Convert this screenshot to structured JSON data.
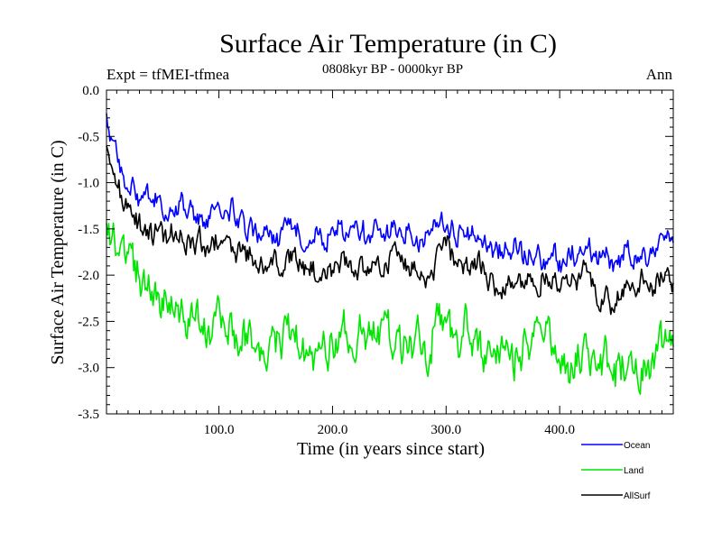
{
  "chart_data": {
    "type": "line",
    "title": "Surface Air Temperature (in C)",
    "subtitle": "0808kyr BP - 0000kyr BP",
    "expt_label": "Expt = tfMEI-tfmea",
    "season_label": "Ann",
    "xlabel": "Time (in years since start)",
    "ylabel": "Surface Air Temperature (in C)",
    "xlim": [
      1,
      500
    ],
    "ylim": [
      -3.5,
      0.0
    ],
    "x_ticks": [
      100,
      200,
      300,
      400
    ],
    "x_tick_labels": [
      "100.0",
      "200.0",
      "300.0",
      "400.0"
    ],
    "y_ticks": [
      0.0,
      -0.5,
      -1.0,
      -1.5,
      -2.0,
      -2.5,
      -3.0,
      -3.5
    ],
    "y_tick_labels": [
      "0.0",
      "-0.5",
      "-1.0",
      "-1.5",
      "-2.0",
      "-2.5",
      "-3.0",
      "-3.5"
    ],
    "sample_step_years": 10,
    "series": [
      {
        "name": "Ocean",
        "color": "#0000ff",
        "values": [
          -0.3,
          -0.85,
          -1.05,
          -1.15,
          -1.2,
          -1.3,
          -1.35,
          -1.3,
          -1.35,
          -1.45,
          -1.3,
          -1.35,
          -1.45,
          -1.55,
          -1.6,
          -1.6,
          -1.5,
          -1.55,
          -1.65,
          -1.6,
          -1.55,
          -1.5,
          -1.55,
          -1.6,
          -1.55,
          -1.45,
          -1.5,
          -1.6,
          -1.65,
          -1.5,
          -1.4,
          -1.55,
          -1.5,
          -1.65,
          -1.7,
          -1.75,
          -1.7,
          -1.75,
          -1.8,
          -1.75,
          -1.85,
          -1.75,
          -1.7,
          -1.8,
          -1.8,
          -1.85,
          -1.75,
          -1.85,
          -1.8,
          -1.75
        ]
      },
      {
        "name": "Land",
        "color": "#00e600",
        "values": [
          -1.3,
          -1.7,
          -1.9,
          -2.1,
          -2.3,
          -2.2,
          -2.35,
          -2.4,
          -2.3,
          -2.5,
          -2.4,
          -2.55,
          -2.6,
          -2.7,
          -2.8,
          -2.7,
          -2.6,
          -2.75,
          -2.8,
          -2.85,
          -2.7,
          -2.6,
          -2.75,
          -2.7,
          -2.6,
          -2.55,
          -2.7,
          -2.75,
          -2.8,
          -2.6,
          -2.5,
          -2.7,
          -2.65,
          -2.85,
          -2.9,
          -2.8,
          -2.85,
          -2.75,
          -2.8,
          -2.7,
          -2.9,
          -2.95,
          -2.85,
          -2.9,
          -3.0,
          -3.05,
          -2.95,
          -2.9,
          -2.85,
          -2.75
        ]
      },
      {
        "name": "AllSurf",
        "color": "#000000",
        "values": [
          -0.6,
          -1.1,
          -1.3,
          -1.45,
          -1.5,
          -1.55,
          -1.6,
          -1.65,
          -1.6,
          -1.7,
          -1.65,
          -1.7,
          -1.75,
          -1.85,
          -1.9,
          -1.9,
          -1.8,
          -1.85,
          -1.95,
          -2.0,
          -1.9,
          -1.85,
          -1.95,
          -1.9,
          -1.85,
          -1.8,
          -1.85,
          -1.95,
          -2.0,
          -1.85,
          -1.75,
          -1.9,
          -1.85,
          -2.0,
          -2.05,
          -2.1,
          -2.05,
          -2.05,
          -2.1,
          -2.0,
          -2.1,
          -2.1,
          -2.05,
          -2.15,
          -2.2,
          -2.2,
          -2.1,
          -2.15,
          -2.1,
          -2.05
        ]
      }
    ]
  }
}
